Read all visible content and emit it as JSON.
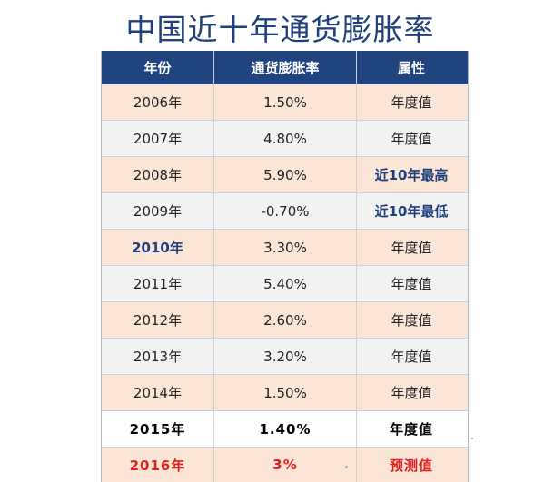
{
  "title": "中国近十年通货膨胀率",
  "table": {
    "headers": [
      "年份",
      "通货膨胀率",
      "属性"
    ],
    "rows": [
      {
        "year": "2006年",
        "rate": "1.50%",
        "attr": "年度值"
      },
      {
        "year": "2007年",
        "rate": "4.80%",
        "attr": "年度值"
      },
      {
        "year": "2008年",
        "rate": "5.90%",
        "attr": "近10年最高"
      },
      {
        "year": "2009年",
        "rate": "-0.70%",
        "attr": "近10年最低"
      },
      {
        "year": "2010年",
        "rate": "3.30%",
        "attr": "年度值"
      },
      {
        "year": "2011年",
        "rate": "5.40%",
        "attr": "年度值"
      },
      {
        "year": "2012年",
        "rate": "2.60%",
        "attr": "年度值"
      },
      {
        "year": "2013年",
        "rate": "3.20%",
        "attr": "年度值"
      },
      {
        "year": "2014年",
        "rate": "1.50%",
        "attr": "年度值"
      },
      {
        "year": "2015年",
        "rate": "1.40%",
        "attr": "年度值"
      },
      {
        "year": "2016年",
        "rate": "3%",
        "attr": "预测值"
      }
    ]
  },
  "colors": {
    "header_bg": "#1f4480",
    "title": "#1f3f7a",
    "row_odd": "#fbe5d6",
    "row_even": "#f2f2f2",
    "highlight_blue": "#1f3f7a",
    "forecast_red": "#e02020"
  }
}
